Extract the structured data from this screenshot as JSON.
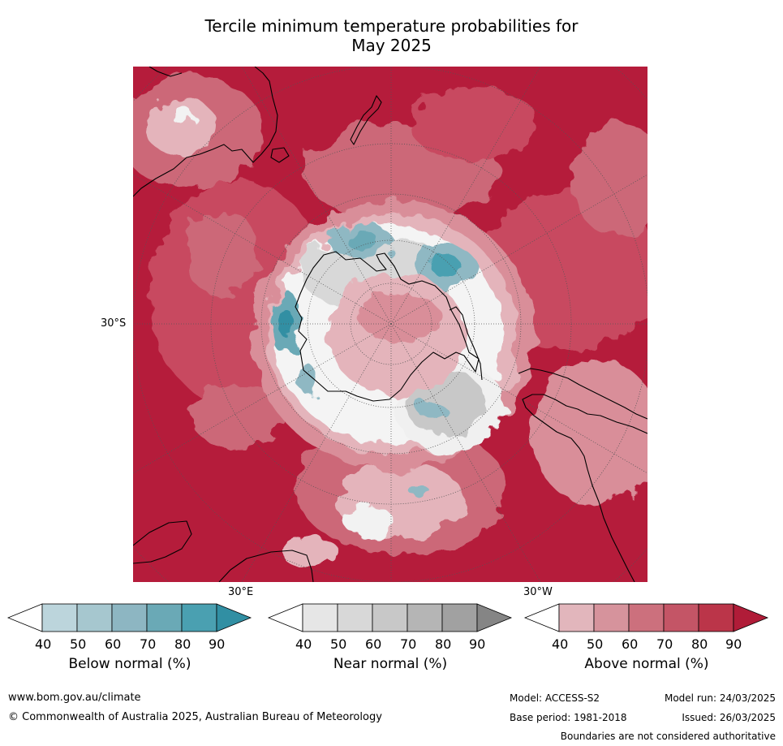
{
  "title": {
    "line1": "Tercile minimum temperature probabilities for",
    "line2": "May 2025"
  },
  "map": {
    "projection": "south-polar-stereographic",
    "lat_label": "30°S",
    "lon_labels": {
      "east": "30°E",
      "west": "30°W"
    },
    "colors": {
      "ocean_high_above": "#b51c3b",
      "above_80": "#c84a60",
      "above_70": "#cc6878",
      "above_60": "#d98e99",
      "above_50": "#e4b4bb",
      "near": "#d8d8d8",
      "below_60": "#8fb8c3",
      "below_80": "#3d9aaa",
      "coast": "#000000",
      "grid": "#555555"
    }
  },
  "legends": [
    {
      "id": "below",
      "title": "Below normal (%)",
      "ticks": [
        "40",
        "50",
        "60",
        "70",
        "80",
        "90"
      ],
      "colors": [
        "#ffffff",
        "#bcd5dc",
        "#a6c7cf",
        "#8db6c2",
        "#6aa9b6",
        "#4aa0b1",
        "#318fa3"
      ]
    },
    {
      "id": "near",
      "title": "Near normal (%)",
      "ticks": [
        "40",
        "50",
        "60",
        "70",
        "80",
        "90"
      ],
      "colors": [
        "#ffffff",
        "#e6e6e6",
        "#d8d8d8",
        "#c8c8c8",
        "#b5b5b5",
        "#a1a1a1",
        "#858585"
      ]
    },
    {
      "id": "above",
      "title": "Above normal (%)",
      "ticks": [
        "40",
        "50",
        "60",
        "70",
        "80",
        "90"
      ],
      "colors": [
        "#ffffff",
        "#e2b6bc",
        "#d6939c",
        "#cc707d",
        "#c45566",
        "#bb3549",
        "#b01c38"
      ]
    }
  ],
  "footer": {
    "website": "www.bom.gov.au/climate",
    "copyright": "© Commonwealth of Australia 2025, Australian Bureau of Meteorology",
    "model": "Model: ACCESS-S2",
    "base_period": "Base period: 1981-2018",
    "model_run": "Model run: 24/03/2025",
    "issued": "Issued: 26/03/2025",
    "disclaimer": "Boundaries are not considered authoritative"
  }
}
